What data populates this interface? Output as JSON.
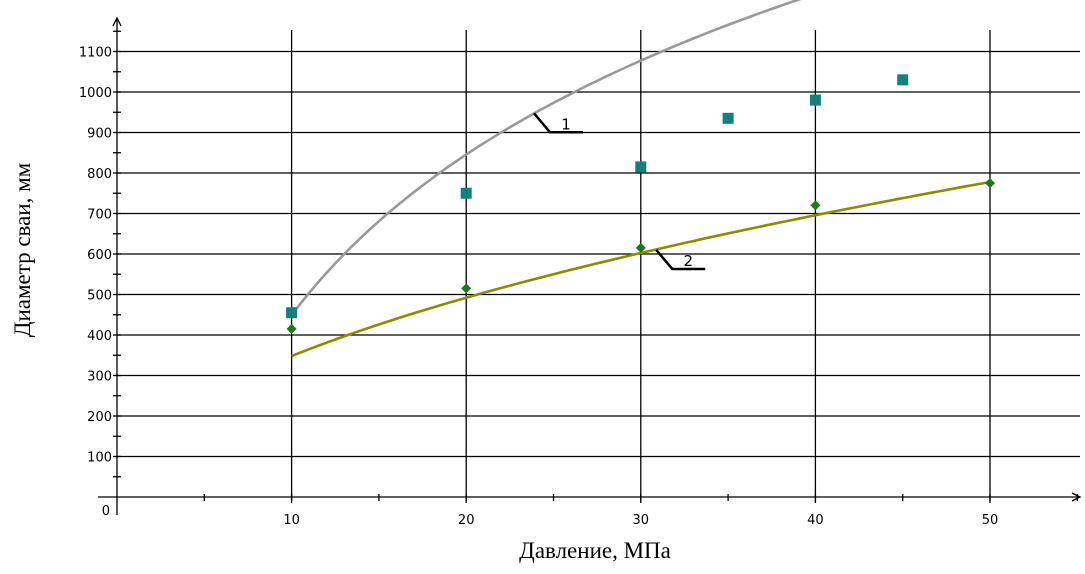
{
  "chart_data": {
    "type": "scatter",
    "title": "",
    "xlabel": "Давление, МПа",
    "ylabel": "Диаметр сваи, мм",
    "xlim": [
      0,
      55
    ],
    "ylim": [
      0,
      1150
    ],
    "x_ticks": [
      10,
      20,
      30,
      40,
      50
    ],
    "x_tick_labels": [
      "10",
      "20",
      "30",
      "40",
      "50"
    ],
    "y_ticks": [
      100,
      200,
      300,
      400,
      500,
      600,
      700,
      800,
      900,
      1000,
      1100
    ],
    "y_tick_labels": [
      "100",
      "200",
      "300",
      "400",
      "500",
      "600",
      "700",
      "800",
      "900",
      "1000",
      "1100"
    ],
    "origin_label": "0",
    "grid": true,
    "series": [
      {
        "callout": "1",
        "color": "#138080",
        "marker": "square",
        "line_color": "#999999",
        "points": [
          {
            "x": 10,
            "y": 455
          },
          {
            "x": 20,
            "y": 750
          },
          {
            "x": 30,
            "y": 815
          },
          {
            "x": 35,
            "y": 935
          },
          {
            "x": 40,
            "y": 980
          },
          {
            "x": 45,
            "y": 1030
          }
        ],
        "trend": {
          "kind": "log",
          "a": -868,
          "b": 572
        }
      },
      {
        "callout": "2",
        "color": "#1a7a1a",
        "marker": "diamond",
        "line_color": "#8c8c00",
        "points": [
          {
            "x": 10,
            "y": 415
          },
          {
            "x": 20,
            "y": 515
          },
          {
            "x": 30,
            "y": 615
          },
          {
            "x": 40,
            "y": 720
          },
          {
            "x": 50,
            "y": 775
          }
        ],
        "trend": {
          "kind": "power",
          "a": 110,
          "b": 0.5
        }
      }
    ]
  }
}
